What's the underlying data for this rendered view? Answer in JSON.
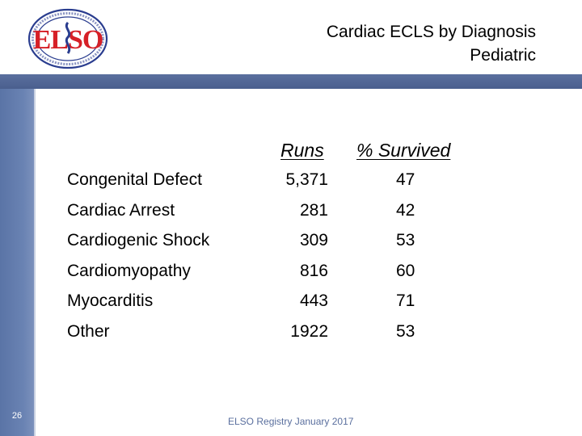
{
  "header": {
    "title_line1": "Cardiac ECLS by Diagnosis",
    "title_line2": "Pediatric",
    "logo_text": "ELSO",
    "logo_ring_top": "EXTRACORPOREAL LIFE SUPPORT ORGANIZATION",
    "logo_ring_bottom": "ESTABLISHED 1989"
  },
  "table": {
    "columns": [
      "Runs",
      "% Survived"
    ],
    "rows": [
      {
        "diagnosis": "Congenital Defect",
        "runs": "5,371",
        "survived": "47"
      },
      {
        "diagnosis": "Cardiac Arrest",
        "runs": "281",
        "survived": "42"
      },
      {
        "diagnosis": "Cardiogenic Shock",
        "runs": "309",
        "survived": "53"
      },
      {
        "diagnosis": "Cardiomyopathy",
        "runs": "816",
        "survived": "60"
      },
      {
        "diagnosis": "Myocarditis",
        "runs": "443",
        "survived": "71"
      },
      {
        "diagnosis": "Other",
        "runs": "1922",
        "survived": "53"
      }
    ]
  },
  "footer": {
    "slide_number": "26",
    "source": "ELSO Registry January 2017"
  },
  "colors": {
    "accent": "#5a74a6",
    "logo_red": "#d62027",
    "logo_blue": "#2a3d8f"
  }
}
